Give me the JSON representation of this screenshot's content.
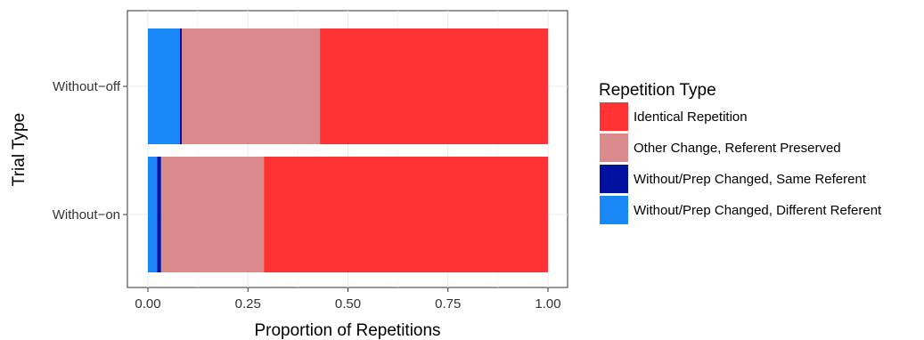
{
  "chart_data": {
    "type": "bar",
    "orientation": "horizontal",
    "stacked": true,
    "xlabel": "Proportion of Repetitions",
    "ylabel": "Trial Type",
    "xlim": [
      0,
      1
    ],
    "x_ticks": [
      "0.00",
      "0.25",
      "0.50",
      "0.75",
      "1.00"
    ],
    "x_tick_values": [
      0,
      0.25,
      0.5,
      0.75,
      1
    ],
    "categories": [
      "Without−off",
      "Without−on"
    ],
    "grid": true,
    "legend_title": "Repetition Type",
    "legend_position": "right",
    "stack_order": [
      "Without/Prep Changed, Different Referent",
      "Without/Prep Changed, Same Referent",
      "Other Change, Referent Preserved",
      "Identical Repetition"
    ],
    "series": [
      {
        "name": "Identical Repetition",
        "color": "#FF3333",
        "values": [
          0.57,
          0.71
        ]
      },
      {
        "name": "Other Change, Referent Preserved",
        "color": "#DA8A8A",
        "values": [
          0.345,
          0.257
        ]
      },
      {
        "name": "Without/Prep Changed, Same Referent",
        "color": "#00109F",
        "values": [
          0.005,
          0.01
        ]
      },
      {
        "name": "Without/Prep Changed, Different Referent",
        "color": "#1A87F7",
        "values": [
          0.08,
          0.023
        ]
      }
    ]
  }
}
